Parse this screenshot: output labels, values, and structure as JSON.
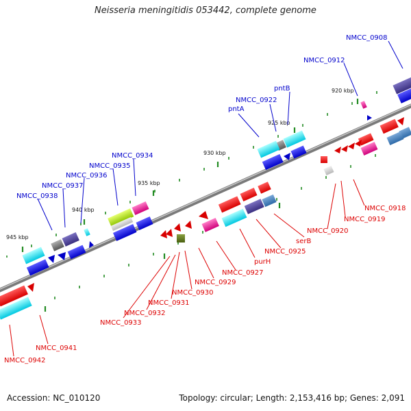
{
  "title": "Neisseria meningitidis 053442, complete genome",
  "footer": {
    "accession": "Accession: NC_010120",
    "summary": "Topology: circular; Length: 2,153,416 bp; Genes: 2,091"
  },
  "colors": {
    "label_blue": "#0000cc",
    "label_red": "#dd0000",
    "backbone": "#7a7a7a",
    "tick": "#228b22"
  },
  "kbp_ticks": [
    "920 kbp",
    "925 kbp",
    "930 kbp",
    "935 kbp",
    "940 kbp",
    "945 kbp"
  ],
  "forward_labels": [
    "NMCC_0908",
    "NMCC_0912",
    "pntB",
    "NMCC_0922",
    "pntA",
    "NMCC_0934",
    "NMCC_0935",
    "NMCC_0936",
    "NMCC_0937",
    "NMCC_0938"
  ],
  "reverse_labels": [
    "NMCC_0918",
    "NMCC_0919",
    "NMCC_0920",
    "serB",
    "NMCC_0925",
    "purH",
    "NMCC_0927",
    "NMCC_0929",
    "NMCC_0930",
    "NMCC_0931",
    "NMCC_0932",
    "NMCC_0933",
    "NMCC_0941",
    "NMCC_0942"
  ]
}
